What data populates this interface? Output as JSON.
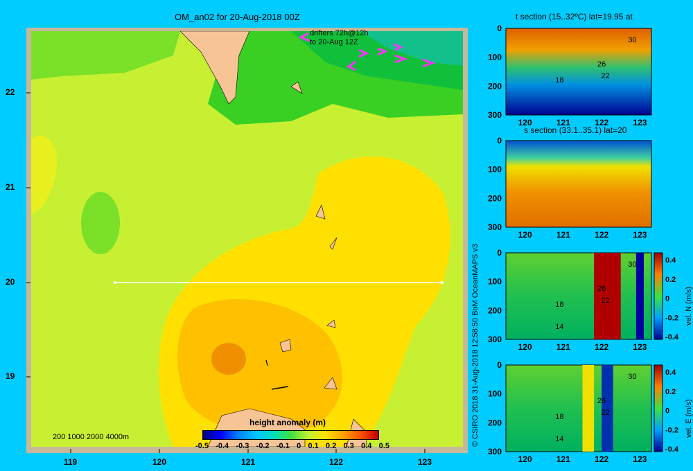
{
  "header": {
    "title": "OM_an02 for 20-Aug-2018 00Z",
    "drifters_line1": "drifters 72h@12h",
    "drifters_line2": "to 20-Aug 12Z"
  },
  "credit": "© CSIRO 2018  31-Aug-2018 12:58:50 BoM OceanMAPS v3",
  "colors": {
    "background": "#00ccff",
    "land": "#f7c496",
    "drifters": "#ff33ff",
    "section_line": "#ffffff"
  },
  "chart_data": [
    {
      "type": "heatmap",
      "name": "height-anomaly-map",
      "title": "OM_an02 for 20-Aug-2018 00Z",
      "xlim": [
        118.5,
        123.5
      ],
      "ylim": [
        18.3,
        22.7
      ],
      "xticks": [
        119,
        120,
        121,
        122,
        123
      ],
      "yticks": [
        19,
        20,
        21,
        22
      ],
      "colorbar": {
        "label": "height anomaly  (m)",
        "range": [
          -0.5,
          0.5
        ],
        "ticks": [
          "-0.5",
          "-0.4",
          "-0.3",
          "-0.2",
          "-0.1",
          "0",
          "0.1",
          "0.2",
          "0.3",
          "0.4",
          "0.5"
        ]
      },
      "depth_legend": "200  1000  2000  4000m",
      "section_line": {
        "lat": 20,
        "lon_start": 119.5,
        "lon_end": 123.2
      },
      "features": [
        {
          "name": "Taiwan",
          "kind": "land"
        },
        {
          "name": "Luzon",
          "kind": "land"
        },
        {
          "name": "Batanes and Babuyan Islands",
          "kind": "land"
        }
      ],
      "anomaly_regions": [
        {
          "area": "northeast corner",
          "approx_value": -0.05
        },
        {
          "area": "northwest corner",
          "approx_value": 0.05
        },
        {
          "area": "west-central eddy",
          "approx_value": 0.05
        },
        {
          "area": "central band",
          "approx_value": 0.15
        },
        {
          "area": "southwest eddy core near 120.7E 19.2N",
          "approx_value": 0.35
        }
      ]
    },
    {
      "type": "heatmap",
      "name": "t-section",
      "title": "t section (15..32ºC) lat=19.95 at",
      "xlim": [
        119.5,
        123.3
      ],
      "ylim": [
        300,
        0
      ],
      "xticks": [
        120,
        121,
        122,
        123
      ],
      "yticks": [
        0,
        100,
        200,
        300
      ],
      "contour_labels": [
        "30",
        "26",
        "22",
        "18"
      ]
    },
    {
      "type": "heatmap",
      "name": "s-section",
      "title": "s section (33.1..35.1) lat=20",
      "xlim": [
        119.5,
        123.3
      ],
      "ylim": [
        300,
        0
      ],
      "xticks": [
        120,
        121,
        122,
        123
      ],
      "yticks": [
        0,
        100,
        200,
        300
      ]
    },
    {
      "type": "heatmap",
      "name": "vel-n-section",
      "xlim": [
        119.5,
        123.3
      ],
      "ylim": [
        300,
        0
      ],
      "xticks": [
        120,
        121,
        122,
        123
      ],
      "yticks": [
        0,
        100,
        200,
        300
      ],
      "contour_labels": [
        "30",
        "26",
        "22",
        "18",
        "14"
      ],
      "colorbar": {
        "label": "vel. N  (m/s)",
        "range": [
          -0.4,
          0.4
        ],
        "ticks": [
          "0.4",
          "0.2",
          "0",
          "-0.2",
          "-0.4"
        ]
      }
    },
    {
      "type": "heatmap",
      "name": "vel-e-section",
      "xlim": [
        119.5,
        123.3
      ],
      "ylim": [
        300,
        0
      ],
      "xticks": [
        120,
        121,
        122,
        123
      ],
      "yticks": [
        0,
        100,
        200,
        300
      ],
      "contour_labels": [
        "30",
        "26",
        "22",
        "18",
        "14"
      ],
      "colorbar": {
        "label": "vel. E  (m/s)",
        "range": [
          -0.4,
          0.4
        ],
        "ticks": [
          "0.4",
          "0.2",
          "0",
          "-0.2",
          "-0.4"
        ]
      }
    }
  ]
}
